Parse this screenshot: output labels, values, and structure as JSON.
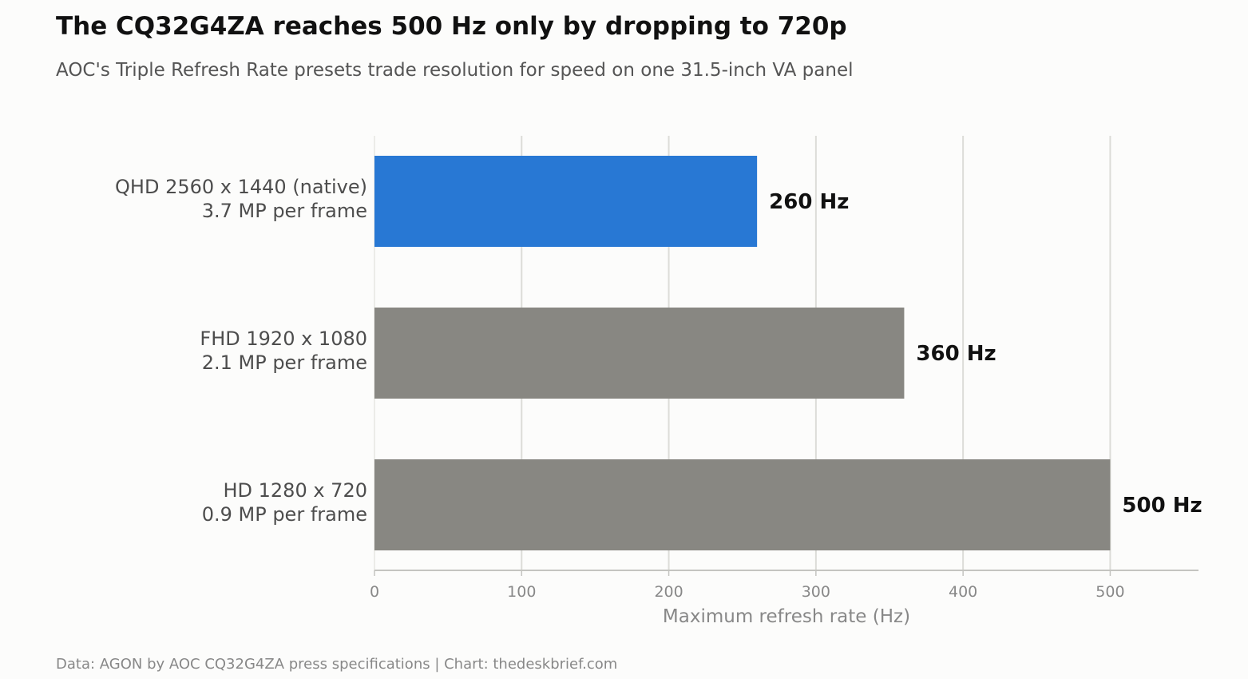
{
  "header": {
    "title": "The CQ32G4ZA reaches 500 Hz only by dropping to 720p",
    "subtitle": "AOC's Triple Refresh Rate presets trade resolution for speed on one 31.5-inch VA panel"
  },
  "footer": {
    "source": "Data: AGON by AOC CQ32G4ZA press specifications  |  Chart: thedeskbrief.com"
  },
  "chart_data": {
    "type": "bar",
    "orientation": "horizontal",
    "title": "The CQ32G4ZA reaches 500 Hz only by dropping to 720p",
    "subtitle": "AOC's Triple Refresh Rate presets trade resolution for speed on one 31.5-inch VA panel",
    "xlabel": "Maximum refresh rate (Hz)",
    "ylabel": "",
    "xlim": [
      0,
      560
    ],
    "xticks": [
      0,
      100,
      200,
      300,
      400,
      500
    ],
    "grid": "vertical",
    "legend": "none",
    "categories": [
      [
        "QHD 2560 x 1440 (native)",
        "3.7 MP per frame"
      ],
      [
        "FHD 1920 x 1080",
        "2.1 MP per frame"
      ],
      [
        "HD 1280 x 720",
        "0.9 MP per frame"
      ]
    ],
    "values": [
      260,
      360,
      500
    ],
    "value_labels": [
      "260 Hz",
      "360 Hz",
      "500 Hz"
    ],
    "colors": [
      "#2878d4",
      "#888782",
      "#888782"
    ],
    "highlight_color": "#2878d4",
    "base_color": "#888782"
  }
}
